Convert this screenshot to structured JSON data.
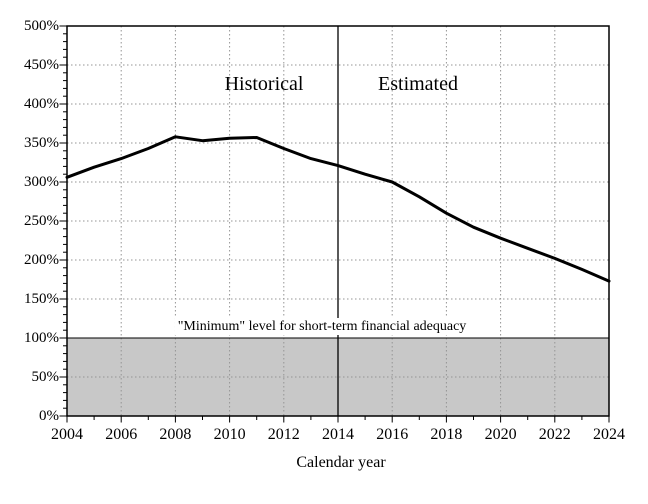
{
  "chart_data": {
    "type": "line",
    "title": "",
    "xlabel": "Calendar year",
    "ylabel": "",
    "x": [
      2004,
      2005,
      2006,
      2007,
      2008,
      2009,
      2010,
      2011,
      2012,
      2013,
      2014,
      2015,
      2016,
      2017,
      2018,
      2019,
      2020,
      2021,
      2022,
      2023,
      2024
    ],
    "values": [
      306,
      319,
      330,
      343,
      358,
      353,
      356,
      357,
      343,
      330,
      321,
      310,
      300,
      281,
      260,
      242,
      228,
      215,
      202,
      188,
      173
    ],
    "xlim": [
      2004,
      2024
    ],
    "ylim": [
      0,
      500
    ],
    "x_ticks": [
      2004,
      2006,
      2008,
      2010,
      2012,
      2014,
      2016,
      2018,
      2020,
      2022,
      2024
    ],
    "x_tick_labels": [
      "2004",
      "2006",
      "2008",
      "2010",
      "2012",
      "2014",
      "2016",
      "2018",
      "2020",
      "2022",
      "2024"
    ],
    "x_minor_tick_step": 1,
    "y_ticks": [
      0,
      50,
      100,
      150,
      200,
      250,
      300,
      350,
      400,
      450,
      500
    ],
    "y_tick_labels": [
      "0%",
      "50%",
      "100%",
      "150%",
      "200%",
      "250%",
      "300%",
      "350%",
      "400%",
      "450%",
      "500%"
    ],
    "y_minor_tick_step": 10,
    "grid": "dotted, both axes, on",
    "legend": "none",
    "annotations": {
      "historical_label": "Historical",
      "estimated_label": "Estimated",
      "divider_year": 2014,
      "minimum_label": "\"Minimum\" level for short-term financial adequacy",
      "shaded_band": {
        "from_pct": 0,
        "to_pct": 100
      }
    },
    "colors": {
      "line": "#000000",
      "shade": "#c8c8c8",
      "grid": "#949494",
      "frame": "#000000",
      "background": "#ffffff"
    }
  }
}
